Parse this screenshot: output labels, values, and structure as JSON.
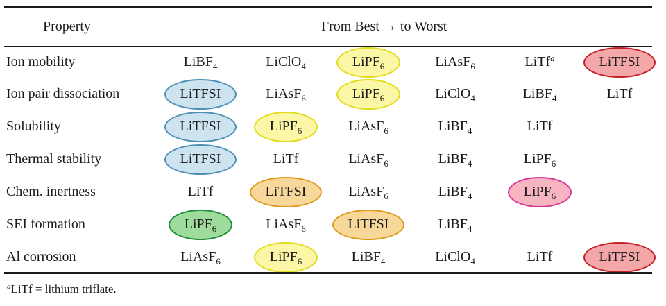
{
  "header": {
    "property": "Property",
    "range": "From Best → to Worst"
  },
  "rows": [
    {
      "label": "Ion mobility",
      "values": [
        {
          "base": "LiBF",
          "sub": "4",
          "highlight": null
        },
        {
          "base": "LiClO",
          "sub": "4",
          "highlight": null
        },
        {
          "base": "LiPF",
          "sub": "6",
          "highlight": "yellow"
        },
        {
          "base": "LiAsF",
          "sub": "6",
          "highlight": null
        },
        {
          "base": "LiTf",
          "sup": "a",
          "highlight": null
        },
        {
          "base": "LiTFSI",
          "highlight": "red"
        }
      ]
    },
    {
      "label": "Ion pair dissociation",
      "values": [
        {
          "base": "LiTFSI",
          "highlight": "blue"
        },
        {
          "base": "LiAsF",
          "sub": "6",
          "highlight": null
        },
        {
          "base": "LiPF",
          "sub": "6",
          "highlight": "yellow"
        },
        {
          "base": "LiClO",
          "sub": "4",
          "highlight": null
        },
        {
          "base": "LiBF",
          "sub": "4",
          "highlight": null
        },
        {
          "base": "LiTf",
          "highlight": null
        }
      ]
    },
    {
      "label": "Solubility",
      "values": [
        {
          "base": "LiTFSI",
          "highlight": "blue"
        },
        {
          "base": "LiPF",
          "sub": "6",
          "highlight": "yellow"
        },
        {
          "base": "LiAsF",
          "sub": "6",
          "highlight": null
        },
        {
          "base": "LiBF",
          "sub": "4",
          "highlight": null
        },
        {
          "base": "LiTf",
          "highlight": null
        }
      ]
    },
    {
      "label": "Thermal stability",
      "values": [
        {
          "base": "LiTFSI",
          "highlight": "blue"
        },
        {
          "base": "LiTf",
          "highlight": null
        },
        {
          "base": "LiAsF",
          "sub": "6",
          "highlight": null
        },
        {
          "base": "LiBF",
          "sub": "4",
          "highlight": null
        },
        {
          "base": "LiPF",
          "sub": "6",
          "highlight": null
        }
      ]
    },
    {
      "label": "Chem. inertness",
      "values": [
        {
          "base": "LiTf",
          "highlight": null
        },
        {
          "base": "LiTFSI",
          "highlight": "orange"
        },
        {
          "base": "LiAsF",
          "sub": "6",
          "highlight": null
        },
        {
          "base": "LiBF",
          "sub": "4",
          "highlight": null
        },
        {
          "base": "LiPF",
          "sub": "6",
          "highlight": "pink"
        }
      ]
    },
    {
      "label": "SEI formation",
      "values": [
        {
          "base": "LiPF",
          "sub": "6",
          "highlight": "green"
        },
        {
          "base": "LiAsF",
          "sub": "6",
          "highlight": null
        },
        {
          "base": "LiTFSI",
          "highlight": "orange"
        },
        {
          "base": "LiBF",
          "sub": "4",
          "highlight": null
        }
      ]
    },
    {
      "label": "Al corrosion",
      "values": [
        {
          "base": "LiAsF",
          "sub": "6",
          "highlight": null
        },
        {
          "base": "LiPF",
          "sub": "6",
          "highlight": "yellow"
        },
        {
          "base": "LiBF",
          "sub": "4",
          "highlight": null
        },
        {
          "base": "LiClO",
          "sub": "4",
          "highlight": null
        },
        {
          "base": "LiTf",
          "highlight": null
        },
        {
          "base": "LiTFSI",
          "highlight": "red"
        }
      ]
    }
  ],
  "footnote": {
    "mark": "a",
    "text": "LiTf = lithium triflate."
  },
  "highlight_colors": {
    "yellow": {
      "fill": "#fbf7a6",
      "stroke": "#e3dc1c"
    },
    "red": {
      "fill": "#f3a7a9",
      "stroke": "#c41e27"
    },
    "blue": {
      "fill": "#cde3ef",
      "stroke": "#4d8fb5"
    },
    "orange": {
      "fill": "#f8d79a",
      "stroke": "#df9a1c"
    },
    "pink": {
      "fill": "#f7b6bf",
      "stroke": "#d8359c"
    },
    "green": {
      "fill": "#9fdc9c",
      "stroke": "#1f8f3a"
    }
  }
}
